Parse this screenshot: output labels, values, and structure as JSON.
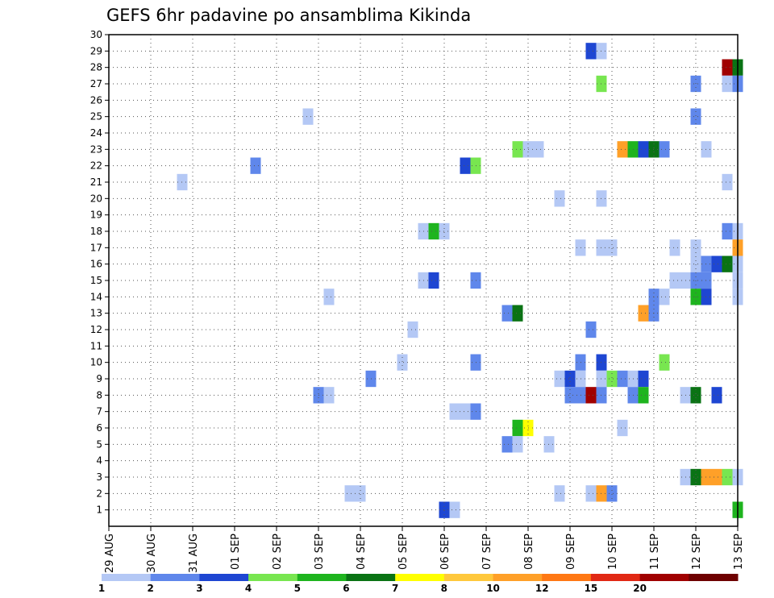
{
  "chart_data": {
    "type": "heatmap",
    "title": "GEFS 6hr padavine po ansamblima Kikinda",
    "xlabel": "",
    "ylabel": "",
    "x_tick_labels": [
      "29 AUG",
      "30 AUG",
      "31 AUG",
      "01 SEP",
      "02 SEP",
      "03 SEP",
      "04 SEP",
      "05 SEP",
      "06 SEP",
      "07 SEP",
      "08 SEP",
      "09 SEP",
      "10 SEP",
      "11 SEP",
      "12 SEP",
      "13 SEP"
    ],
    "y_tick_labels": [
      "1",
      "2",
      "3",
      "4",
      "5",
      "6",
      "7",
      "8",
      "9",
      "10",
      "11",
      "12",
      "13",
      "14",
      "15",
      "16",
      "17",
      "18",
      "19",
      "20",
      "21",
      "22",
      "23",
      "24",
      "25",
      "26",
      "27",
      "28",
      "29",
      "30"
    ],
    "x_range_days": [
      0,
      15
    ],
    "x_step_days": 0.25,
    "y_range": [
      0,
      30
    ],
    "grid": true,
    "legend": {
      "position": "bottom",
      "bins": [
        {
          "label": "1",
          "color": "#b4c8f5"
        },
        {
          "label": "2",
          "color": "#5f87eb"
        },
        {
          "label": "3",
          "color": "#1e46d2"
        },
        {
          "label": "4",
          "color": "#78e650"
        },
        {
          "label": "5",
          "color": "#1eb41e"
        },
        {
          "label": "6",
          "color": "#0a7314"
        },
        {
          "label": "7",
          "color": "#ffff00"
        },
        {
          "label": "8",
          "color": "#ffc83c"
        },
        {
          "label": "10",
          "color": "#ffa028"
        },
        {
          "label": "12",
          "color": "#ff7814"
        },
        {
          "label": "15",
          "color": "#e12814"
        },
        {
          "label": "20",
          "color": "#a00000"
        },
        {
          "label": "",
          "color": "#6e0000"
        }
      ]
    },
    "cells": [
      {
        "member": 29,
        "day": 11.5,
        "level": 3
      },
      {
        "member": 29,
        "day": 11.75,
        "level": 1
      },
      {
        "member": 28,
        "day": 14.75,
        "level": 12
      },
      {
        "member": 28,
        "day": 15.0,
        "level": 6
      },
      {
        "member": 27,
        "day": 11.75,
        "level": 4
      },
      {
        "member": 27,
        "day": 14.0,
        "level": 2
      },
      {
        "member": 27,
        "day": 14.75,
        "level": 1
      },
      {
        "member": 27,
        "day": 15.0,
        "level": 2
      },
      {
        "member": 25,
        "day": 4.75,
        "level": 1
      },
      {
        "member": 25,
        "day": 14.0,
        "level": 2
      },
      {
        "member": 23,
        "day": 9.75,
        "level": 4
      },
      {
        "member": 23,
        "day": 10.0,
        "level": 1
      },
      {
        "member": 23,
        "day": 10.25,
        "level": 1
      },
      {
        "member": 23,
        "day": 12.25,
        "level": 9
      },
      {
        "member": 23,
        "day": 12.5,
        "level": 5
      },
      {
        "member": 23,
        "day": 12.75,
        "level": 3
      },
      {
        "member": 23,
        "day": 13.0,
        "level": 6
      },
      {
        "member": 23,
        "day": 13.25,
        "level": 2
      },
      {
        "member": 23,
        "day": 14.25,
        "level": 1
      },
      {
        "member": 22,
        "day": 3.5,
        "level": 2
      },
      {
        "member": 22,
        "day": 8.5,
        "level": 3
      },
      {
        "member": 22,
        "day": 8.75,
        "level": 4
      },
      {
        "member": 21,
        "day": 1.75,
        "level": 1
      },
      {
        "member": 21,
        "day": 14.75,
        "level": 1
      },
      {
        "member": 20,
        "day": 10.75,
        "level": 1
      },
      {
        "member": 20,
        "day": 11.75,
        "level": 1
      },
      {
        "member": 18,
        "day": 7.5,
        "level": 1
      },
      {
        "member": 18,
        "day": 7.75,
        "level": 5
      },
      {
        "member": 18,
        "day": 8.0,
        "level": 1
      },
      {
        "member": 18,
        "day": 14.75,
        "level": 2
      },
      {
        "member": 18,
        "day": 15.0,
        "level": 1
      },
      {
        "member": 17,
        "day": 11.25,
        "level": 1
      },
      {
        "member": 17,
        "day": 11.75,
        "level": 1
      },
      {
        "member": 17,
        "day": 12.0,
        "level": 1
      },
      {
        "member": 17,
        "day": 13.5,
        "level": 1
      },
      {
        "member": 17,
        "day": 14.0,
        "level": 1
      },
      {
        "member": 17,
        "day": 15.0,
        "level": 9
      },
      {
        "member": 16,
        "day": 14.0,
        "level": 1
      },
      {
        "member": 16,
        "day": 14.25,
        "level": 2
      },
      {
        "member": 16,
        "day": 14.5,
        "level": 3
      },
      {
        "member": 16,
        "day": 14.75,
        "level": 6
      },
      {
        "member": 16,
        "day": 15.0,
        "level": 1
      },
      {
        "member": 15,
        "day": 7.5,
        "level": 1
      },
      {
        "member": 15,
        "day": 7.75,
        "level": 3
      },
      {
        "member": 15,
        "day": 8.75,
        "level": 2
      },
      {
        "member": 15,
        "day": 13.5,
        "level": 1
      },
      {
        "member": 15,
        "day": 13.75,
        "level": 1
      },
      {
        "member": 15,
        "day": 14.0,
        "level": 2
      },
      {
        "member": 15,
        "day": 14.25,
        "level": 2
      },
      {
        "member": 15,
        "day": 15.0,
        "level": 1
      },
      {
        "member": 14,
        "day": 5.25,
        "level": 1
      },
      {
        "member": 14,
        "day": 13.0,
        "level": 2
      },
      {
        "member": 14,
        "day": 13.25,
        "level": 1
      },
      {
        "member": 14,
        "day": 14.0,
        "level": 5
      },
      {
        "member": 14,
        "day": 14.25,
        "level": 3
      },
      {
        "member": 14,
        "day": 15.0,
        "level": 1
      },
      {
        "member": 13,
        "day": 9.5,
        "level": 2
      },
      {
        "member": 13,
        "day": 9.75,
        "level": 6
      },
      {
        "member": 13,
        "day": 12.75,
        "level": 9
      },
      {
        "member": 13,
        "day": 13.0,
        "level": 2
      },
      {
        "member": 12,
        "day": 7.25,
        "level": 1
      },
      {
        "member": 12,
        "day": 11.5,
        "level": 2
      },
      {
        "member": 10,
        "day": 7.0,
        "level": 1
      },
      {
        "member": 10,
        "day": 8.75,
        "level": 2
      },
      {
        "member": 10,
        "day": 11.25,
        "level": 2
      },
      {
        "member": 10,
        "day": 11.75,
        "level": 3
      },
      {
        "member": 10,
        "day": 13.25,
        "level": 4
      },
      {
        "member": 9,
        "day": 6.25,
        "level": 2
      },
      {
        "member": 9,
        "day": 10.75,
        "level": 1
      },
      {
        "member": 9,
        "day": 11.0,
        "level": 3
      },
      {
        "member": 9,
        "day": 11.25,
        "level": 1
      },
      {
        "member": 9,
        "day": 11.75,
        "level": 1
      },
      {
        "member": 9,
        "day": 12.0,
        "level": 4
      },
      {
        "member": 9,
        "day": 12.25,
        "level": 2
      },
      {
        "member": 9,
        "day": 12.5,
        "level": 1
      },
      {
        "member": 9,
        "day": 12.75,
        "level": 3
      },
      {
        "member": 8,
        "day": 5.0,
        "level": 2
      },
      {
        "member": 8,
        "day": 5.25,
        "level": 1
      },
      {
        "member": 8,
        "day": 11.0,
        "level": 2
      },
      {
        "member": 8,
        "day": 11.25,
        "level": 2
      },
      {
        "member": 8,
        "day": 11.5,
        "level": 12
      },
      {
        "member": 8,
        "day": 11.75,
        "level": 2
      },
      {
        "member": 8,
        "day": 12.5,
        "level": 2
      },
      {
        "member": 8,
        "day": 12.75,
        "level": 5
      },
      {
        "member": 8,
        "day": 13.75,
        "level": 1
      },
      {
        "member": 8,
        "day": 14.0,
        "level": 6
      },
      {
        "member": 8,
        "day": 14.5,
        "level": 3
      },
      {
        "member": 7,
        "day": 8.25,
        "level": 1
      },
      {
        "member": 7,
        "day": 8.5,
        "level": 1
      },
      {
        "member": 7,
        "day": 8.75,
        "level": 2
      },
      {
        "member": 6,
        "day": 9.75,
        "level": 5
      },
      {
        "member": 6,
        "day": 10.0,
        "level": 7
      },
      {
        "member": 6,
        "day": 12.25,
        "level": 1
      },
      {
        "member": 5,
        "day": 9.5,
        "level": 2
      },
      {
        "member": 5,
        "day": 9.75,
        "level": 1
      },
      {
        "member": 5,
        "day": 10.5,
        "level": 1
      },
      {
        "member": 3,
        "day": 13.75,
        "level": 1
      },
      {
        "member": 3,
        "day": 14.0,
        "level": 6
      },
      {
        "member": 3,
        "day": 14.25,
        "level": 9
      },
      {
        "member": 3,
        "day": 14.5,
        "level": 9
      },
      {
        "member": 3,
        "day": 14.75,
        "level": 4
      },
      {
        "member": 3,
        "day": 15.0,
        "level": 1
      },
      {
        "member": 2,
        "day": 5.75,
        "level": 1
      },
      {
        "member": 2,
        "day": 6.0,
        "level": 1
      },
      {
        "member": 2,
        "day": 10.75,
        "level": 1
      },
      {
        "member": 2,
        "day": 11.5,
        "level": 1
      },
      {
        "member": 2,
        "day": 11.75,
        "level": 9
      },
      {
        "member": 2,
        "day": 12.0,
        "level": 2
      },
      {
        "member": 1,
        "day": 8.0,
        "level": 3
      },
      {
        "member": 1,
        "day": 8.25,
        "level": 1
      },
      {
        "member": 1,
        "day": 15.0,
        "level": 5
      }
    ]
  }
}
